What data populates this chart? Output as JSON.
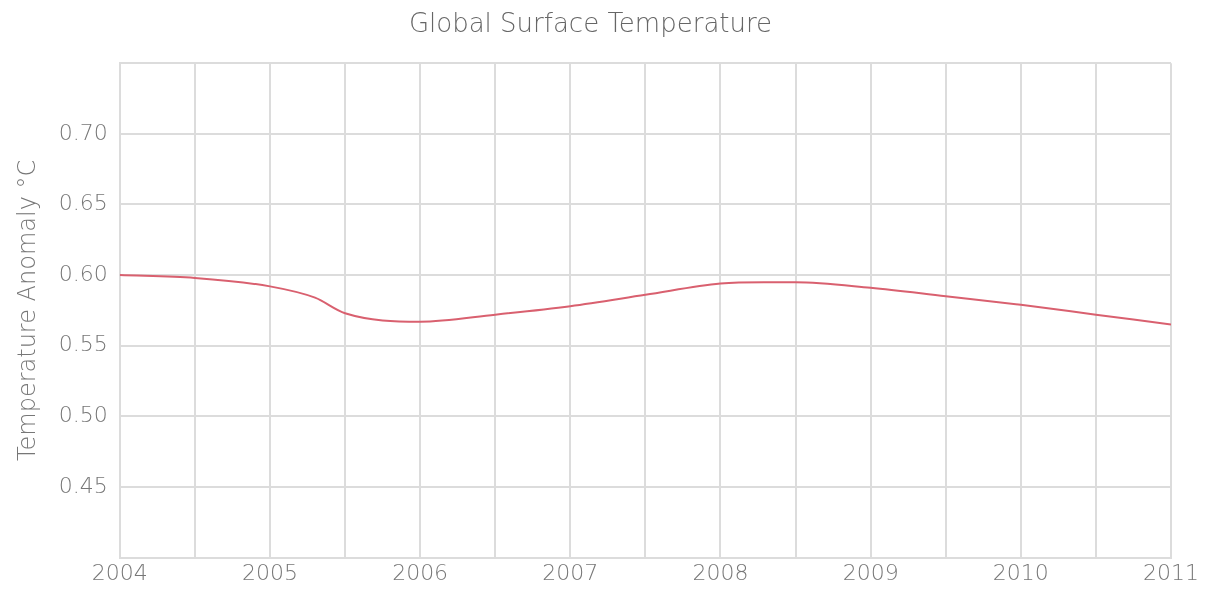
{
  "chart_data": {
    "type": "line",
    "title": "Global Surface Temperature",
    "ylabel": "Temperature Anomaly °C",
    "x": [
      2004,
      2004.5,
      2005,
      2005.3,
      2005.5,
      2006,
      2006.5,
      2007,
      2007.5,
      2008,
      2008.3,
      2008.5,
      2009,
      2009.5,
      2010,
      2010.5,
      2011
    ],
    "series": [
      {
        "color": "#d9606f",
        "values": [
          0.6,
          0.598,
          0.592,
          0.584,
          0.573,
          0.567,
          0.572,
          0.578,
          0.586,
          0.594,
          0.595,
          0.595,
          0.591,
          0.585,
          0.579,
          0.572,
          0.565
        ]
      }
    ],
    "xlim": [
      2004,
      2011
    ],
    "xticks": [
      2004,
      {
        "value": 2004.5,
        "label": null
      },
      2005,
      {
        "value": 2005.5,
        "label": null
      },
      2006,
      {
        "value": 2006.5,
        "label": null
      },
      2007,
      {
        "value": 2007.5,
        "label": null
      },
      2008,
      {
        "value": 2008.5,
        "label": null
      },
      2009,
      {
        "value": 2009.5,
        "label": null
      },
      2010,
      {
        "value": 2010.5,
        "label": null
      },
      2011
    ],
    "ylim": [
      0.4,
      0.75
    ],
    "yticks": [
      {
        "value": 0.4,
        "label": null
      },
      {
        "value": 0.45,
        "label": "0.45"
      },
      {
        "value": 0.5,
        "label": "0.50"
      },
      {
        "value": 0.55,
        "label": "0.55"
      },
      {
        "value": 0.6,
        "label": "0.60"
      },
      {
        "value": 0.65,
        "label": "0.65"
      },
      {
        "value": 0.7,
        "label": "0.70"
      },
      {
        "value": 0.75,
        "label": null
      }
    ],
    "grid": true,
    "marker": "none",
    "line_style": "solid"
  }
}
